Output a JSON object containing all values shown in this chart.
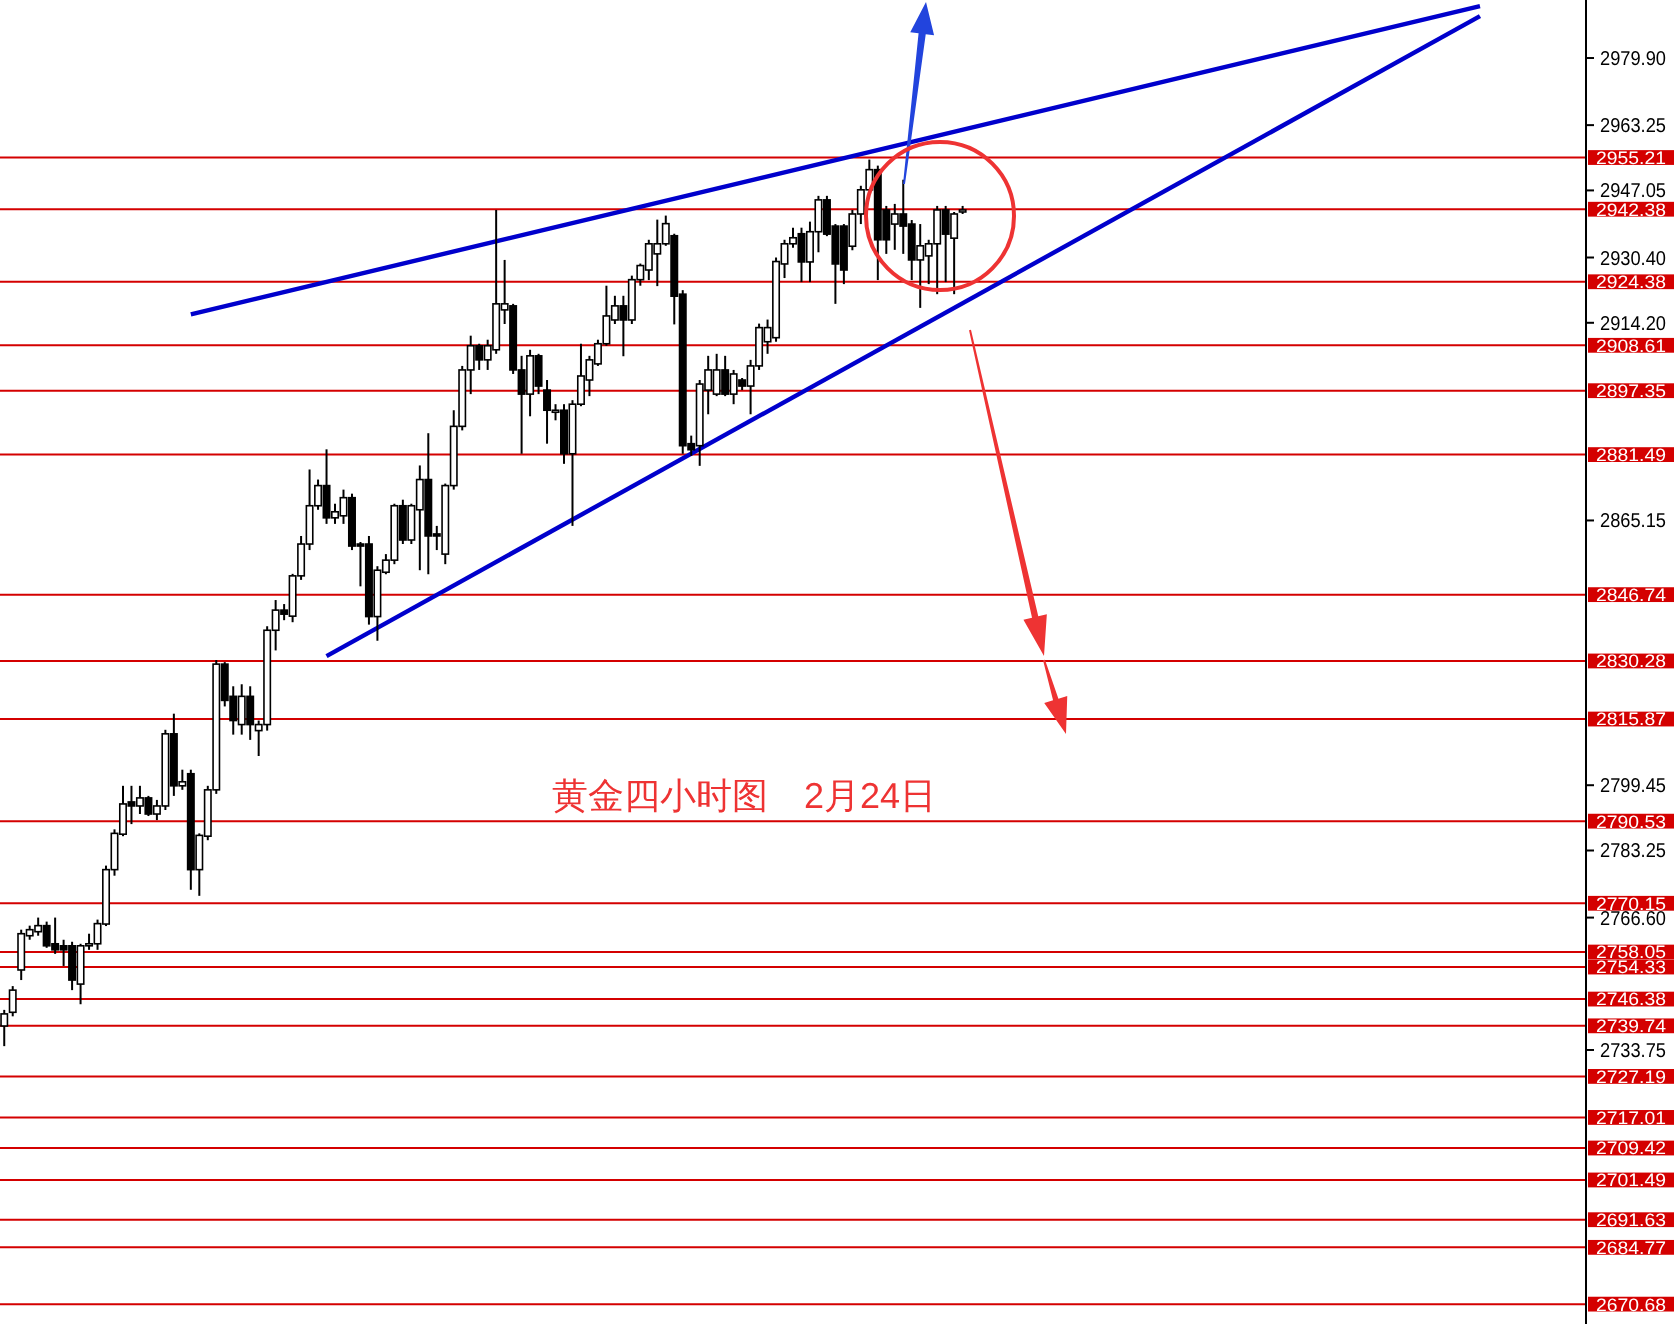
{
  "chart_data": {
    "type": "candlestick",
    "categories": [
      null,
      null,
      null,
      null,
      null,
      null,
      null,
      null,
      null,
      null,
      null,
      null,
      null,
      null,
      null,
      null,
      null,
      null,
      null,
      null,
      null,
      null,
      null,
      null,
      null,
      null,
      null,
      null,
      null,
      null,
      null,
      null,
      null,
      null,
      null,
      null,
      null,
      null,
      null,
      null,
      null,
      null,
      null,
      null,
      null,
      null,
      null,
      null,
      null,
      null,
      null,
      null,
      null,
      null,
      null,
      null,
      null,
      null,
      null,
      null,
      null,
      null,
      null,
      null,
      null,
      null,
      null,
      null,
      null,
      null,
      null,
      null,
      null,
      null,
      null,
      null,
      null,
      null,
      null,
      null,
      null,
      null,
      null,
      null,
      null,
      null,
      null,
      null,
      null,
      null,
      null,
      null,
      null,
      null,
      null,
      null,
      null,
      null,
      null,
      null,
      null,
      null,
      null,
      null,
      null,
      null,
      null,
      null,
      null,
      null,
      null,
      null,
      null,
      null,
      null,
      null,
      null,
      null,
      null,
      null,
      null,
      null,
      null,
      null,
      null,
      null,
      null,
      null,
      null,
      null,
      null,
      null,
      null,
      null,
      null,
      null,
      null,
      null,
      null,
      null,
      null,
      null,
      null,
      null,
      null,
      null,
      null,
      null,
      null,
      null,
      null,
      null,
      null,
      null,
      null,
      null,
      null,
      null,
      null,
      null,
      null,
      null,
      null,
      null,
      null,
      null,
      null,
      null,
      null,
      null,
      null,
      null,
      null,
      null,
      null,
      null,
      null,
      null,
      null,
      null,
      null,
      null,
      null,
      null,
      null,
      null,
      null
    ],
    "ohlc": [
      [
        2739.7,
        2743.7,
        2734.7,
        2742.7
      ],
      [
        2743.1,
        2749.6,
        2742.1,
        2748.6
      ],
      [
        2753.6,
        2763.6,
        2751.1,
        2762.6
      ],
      [
        2762.1,
        2764.6,
        2761.1,
        2763.6
      ],
      [
        2763.1,
        2766.6,
        2762.1,
        2764.6
      ],
      [
        2764.6,
        2765.6,
        2759.1,
        2759.6
      ],
      [
        2760.1,
        2766.6,
        2757.6,
        2758.6
      ],
      [
        2759.6,
        2761.1,
        2754.6,
        2758.6
      ],
      [
        2759.6,
        2760.6,
        2748.6,
        2751.1
      ],
      [
        2750.1,
        2760.1,
        2745.1,
        2759.6
      ],
      [
        2759.6,
        2762.6,
        2758.6,
        2760.1
      ],
      [
        2760.1,
        2766.1,
        2758.6,
        2765.1
      ],
      [
        2765.0,
        2779.5,
        2764.5,
        2778.5
      ],
      [
        2778.5,
        2788.5,
        2777.0,
        2787.5
      ],
      [
        2787.3,
        2799.3,
        2786.8,
        2794.8
      ],
      [
        2795.3,
        2799.3,
        2789.8,
        2794.3
      ],
      [
        2794.3,
        2799.3,
        2792.3,
        2796.3
      ],
      [
        2796.3,
        2796.8,
        2791.8,
        2792.3
      ],
      [
        2792.3,
        2795.8,
        2790.8,
        2794.3
      ],
      [
        2794.3,
        2813.2,
        2793.3,
        2812.2
      ],
      [
        2812.2,
        2817.2,
        2796.8,
        2799.3
      ],
      [
        2799.3,
        2803.3,
        2798.3,
        2800.3
      ],
      [
        2802.3,
        2803.3,
        2773.5,
        2778.5
      ],
      [
        2778.5,
        2787.5,
        2772.0,
        2787.0
      ],
      [
        2786.8,
        2799.3,
        2785.8,
        2798.3
      ],
      [
        2798.3,
        2830.5,
        2797.3,
        2829.5
      ],
      [
        2829.5,
        2830.0,
        2819.0,
        2820.5
      ],
      [
        2821.5,
        2824.0,
        2812.0,
        2815.5
      ],
      [
        2814.5,
        2824.5,
        2812.0,
        2821.5
      ],
      [
        2821.5,
        2824.0,
        2810.7,
        2814.5
      ],
      [
        2813.0,
        2815.5,
        2806.7,
        2814.5
      ],
      [
        2814.5,
        2838.9,
        2813.0,
        2837.9
      ],
      [
        2837.9,
        2845.4,
        2832.9,
        2842.9
      ],
      [
        2842.9,
        2844.4,
        2840.4,
        2841.9
      ],
      [
        2841.4,
        2851.9,
        2839.9,
        2851.4
      ],
      [
        2851.4,
        2861.3,
        2850.4,
        2859.3
      ],
      [
        2859.3,
        2877.8,
        2857.8,
        2868.8
      ],
      [
        2868.8,
        2875.3,
        2867.8,
        2873.8
      ],
      [
        2873.8,
        2882.8,
        2864.3,
        2865.8
      ],
      [
        2865.8,
        2869.3,
        2864.3,
        2867.3
      ],
      [
        2866.3,
        2872.8,
        2864.3,
        2870.8
      ],
      [
        2870.8,
        2871.8,
        2857.8,
        2858.8
      ],
      [
        2859.3,
        2859.8,
        2848.8,
        2858.8
      ],
      [
        2859.3,
        2861.3,
        2839.3,
        2841.3
      ],
      [
        2841.3,
        2853.8,
        2835.3,
        2852.8
      ],
      [
        2852.3,
        2856.8,
        2851.8,
        2855.3
      ],
      [
        2855.3,
        2869.3,
        2854.3,
        2868.8
      ],
      [
        2868.8,
        2870.3,
        2859.3,
        2860.3
      ],
      [
        2860.3,
        2869.3,
        2859.3,
        2868.8
      ],
      [
        2867.8,
        2878.8,
        2852.8,
        2875.3
      ],
      [
        2875.3,
        2886.8,
        2851.8,
        2861.3
      ],
      [
        2861.8,
        2863.8,
        2857.8,
        2861.3
      ],
      [
        2856.8,
        2874.3,
        2854.3,
        2873.8
      ],
      [
        2873.8,
        2892.5,
        2872.8,
        2888.5
      ],
      [
        2888.5,
        2903.5,
        2887.5,
        2902.5
      ],
      [
        2902.5,
        2911.0,
        2896.5,
        2908.5
      ],
      [
        2908.5,
        2909.0,
        2902.5,
        2905.0
      ],
      [
        2905.0,
        2910.0,
        2902.5,
        2908.5
      ],
      [
        2907.5,
        2942.2,
        2906.5,
        2918.9
      ],
      [
        2917.4,
        2929.8,
        2913.9,
        2918.9
      ],
      [
        2918.4,
        2918.9,
        2901.5,
        2902.5
      ],
      [
        2902.5,
        2906.0,
        2881.7,
        2896.5
      ],
      [
        2896.5,
        2907.5,
        2891.0,
        2906.0
      ],
      [
        2906.0,
        2906.5,
        2896.5,
        2898.5
      ],
      [
        2897.5,
        2900.0,
        2884.2,
        2892.5
      ],
      [
        2892.0,
        2894.0,
        2890.0,
        2892.5
      ],
      [
        2892.5,
        2894.0,
        2879.2,
        2881.7
      ],
      [
        2881.7,
        2895.0,
        2863.8,
        2894.0
      ],
      [
        2894.0,
        2909.0,
        2893.5,
        2901.0
      ],
      [
        2900.0,
        2906.0,
        2896.0,
        2905.0
      ],
      [
        2904.0,
        2910.0,
        2903.5,
        2909.0
      ],
      [
        2909.0,
        2923.4,
        2908.5,
        2915.9
      ],
      [
        2914.9,
        2920.9,
        2913.9,
        2918.4
      ],
      [
        2918.4,
        2920.9,
        2905.9,
        2914.9
      ],
      [
        2914.9,
        2925.9,
        2913.9,
        2924.9
      ],
      [
        2924.9,
        2928.9,
        2923.4,
        2928.4
      ],
      [
        2927.3,
        2934.8,
        2924.8,
        2933.8
      ],
      [
        2931.3,
        2939.8,
        2923.3,
        2933.8
      ],
      [
        2933.8,
        2940.8,
        2933.3,
        2938.8
      ],
      [
        2935.8,
        2936.3,
        2913.8,
        2920.8
      ],
      [
        2921.3,
        2922.3,
        2881.7,
        2883.7
      ],
      [
        2884.2,
        2886.2,
        2881.2,
        2882.7
      ],
      [
        2883.7,
        2900.0,
        2878.7,
        2899.0
      ],
      [
        2897.5,
        2906.0,
        2891.5,
        2902.5
      ],
      [
        2896.5,
        2906.5,
        2896.0,
        2902.5
      ],
      [
        2902.5,
        2906.0,
        2896.0,
        2896.5
      ],
      [
        2896.5,
        2902.5,
        2894.0,
        2901.5
      ],
      [
        2900.0,
        2900.5,
        2897.5,
        2898.5
      ],
      [
        2898.5,
        2905.0,
        2891.5,
        2903.5
      ],
      [
        2903.5,
        2914.0,
        2902.5,
        2913.0
      ],
      [
        2909.5,
        2915.0,
        2906.5,
        2913.0
      ],
      [
        2910.5,
        2930.4,
        2909.5,
        2929.4
      ],
      [
        2928.8,
        2934.8,
        2925.3,
        2933.8
      ],
      [
        2933.8,
        2937.8,
        2932.8,
        2935.3
      ],
      [
        2936.3,
        2937.8,
        2924.3,
        2929.3
      ],
      [
        2929.3,
        2939.3,
        2924.3,
        2936.8
      ],
      [
        2936.8,
        2945.7,
        2931.7,
        2944.7
      ],
      [
        2944.7,
        2945.7,
        2935.7,
        2936.2
      ],
      [
        2938.2,
        2938.7,
        2918.9,
        2928.8
      ],
      [
        2938.2,
        2938.7,
        2923.8,
        2927.3
      ],
      [
        2933.2,
        2942.2,
        2932.2,
        2941.2
      ],
      [
        2941.2,
        2948.2,
        2938.7,
        2947.2
      ],
      [
        2947.2,
        2954.7,
        2946.2,
        2952.2
      ],
      [
        2952.2,
        2953.2,
        2924.8,
        2934.8
      ],
      [
        2942.2,
        2943.2,
        2931.3,
        2934.8
      ],
      [
        2938.7,
        2943.7,
        2932.3,
        2941.2
      ],
      [
        2941.2,
        2949.7,
        2931.3,
        2938.2
      ],
      [
        2938.7,
        2939.7,
        2924.8,
        2929.8
      ],
      [
        2929.8,
        2938.7,
        2917.9,
        2933.3
      ],
      [
        2930.8,
        2934.8,
        2923.8,
        2933.8
      ],
      [
        2933.8,
        2943.2,
        2921.3,
        2942.2
      ],
      [
        2942.2,
        2943.2,
        2924.3,
        2936.2
      ],
      [
        2935.2,
        2941.7,
        2921.3,
        2941.2
      ],
      [
        2941.7,
        2943.2,
        2941.2,
        2942.2
      ],
      null,
      null,
      null,
      null,
      null,
      null,
      null,
      null,
      null,
      null,
      null,
      null,
      null,
      null,
      null,
      null,
      null,
      null,
      null,
      null,
      null,
      null,
      null,
      null,
      null,
      null,
      null,
      null,
      null,
      null,
      null,
      null,
      null,
      null,
      null,
      null,
      null,
      null,
      null,
      null,
      null,
      null,
      null,
      null,
      null,
      null,
      null,
      null,
      null,
      null,
      null,
      null,
      null,
      null,
      null,
      null,
      null,
      null,
      null,
      null,
      null,
      null,
      null,
      null,
      null,
      null,
      null,
      null,
      null,
      null,
      null,
      null,
      null
    ],
    "series": [
      {
        "type": "line",
        "color": "#0000cc",
        "values": [
          null,
          null,
          null,
          null,
          null,
          null,
          null,
          null,
          null,
          null,
          null,
          null,
          null,
          null,
          null,
          null,
          null,
          null,
          null,
          null,
          null,
          null,
          2916.3,
          null,
          null,
          null,
          null,
          null,
          null,
          null,
          null,
          null,
          null,
          null,
          null,
          null,
          null,
          null,
          null,
          null,
          null,
          null,
          null,
          null,
          null,
          null,
          null,
          null,
          null,
          null,
          null,
          null,
          null,
          null,
          null,
          null,
          null,
          null,
          null,
          null,
          null,
          null,
          null,
          null,
          null,
          null,
          null,
          null,
          null,
          null,
          null,
          null,
          null,
          null,
          null,
          null,
          null,
          null,
          null,
          null,
          null,
          null,
          null,
          null,
          null,
          null,
          null,
          null,
          null,
          null,
          null,
          null,
          null,
          null,
          null,
          null,
          null,
          null,
          null,
          null,
          null,
          null,
          null,
          null,
          null,
          null,
          null,
          null,
          null,
          null,
          null,
          null,
          null,
          null,
          null,
          null,
          null,
          null,
          null,
          null,
          null,
          null,
          null,
          null,
          null,
          null,
          null,
          null,
          null,
          null,
          null,
          null,
          null,
          null,
          null,
          null,
          null,
          null,
          null,
          null,
          null,
          null,
          null,
          null,
          null,
          null,
          null,
          null,
          null,
          null,
          null,
          null,
          null,
          null,
          null,
          null,
          null,
          null,
          null,
          null,
          null,
          null,
          null,
          null,
          null,
          null,
          null,
          null,
          null,
          null,
          null,
          null,
          null,
          null,
          2992.8,
          null,
          null,
          null,
          null,
          null,
          null,
          null,
          null,
          null,
          null,
          null,
          null
        ]
      },
      {
        "type": "line",
        "color": "#0000cc",
        "values": [
          null,
          null,
          null,
          null,
          null,
          null,
          null,
          null,
          null,
          null,
          null,
          null,
          null,
          null,
          null,
          null,
          null,
          null,
          null,
          null,
          null,
          null,
          null,
          null,
          null,
          null,
          null,
          null,
          null,
          null,
          null,
          null,
          null,
          null,
          null,
          null,
          null,
          null,
          2831.5,
          null,
          null,
          null,
          null,
          null,
          null,
          null,
          null,
          null,
          null,
          null,
          null,
          null,
          null,
          null,
          null,
          null,
          null,
          null,
          null,
          null,
          null,
          null,
          null,
          null,
          null,
          null,
          null,
          null,
          null,
          null,
          null,
          null,
          null,
          null,
          null,
          null,
          null,
          null,
          null,
          null,
          null,
          null,
          null,
          null,
          null,
          null,
          null,
          null,
          null,
          null,
          null,
          null,
          null,
          null,
          null,
          null,
          null,
          null,
          null,
          null,
          null,
          null,
          null,
          null,
          null,
          null,
          null,
          null,
          null,
          null,
          null,
          null,
          null,
          null,
          null,
          null,
          null,
          null,
          null,
          null,
          null,
          null,
          null,
          null,
          null,
          null,
          null,
          null,
          null,
          null,
          null,
          null,
          null,
          null,
          null,
          null,
          null,
          null,
          null,
          null,
          null,
          null,
          null,
          null,
          null,
          null,
          null,
          null,
          null,
          null,
          null,
          null,
          null,
          null,
          null,
          null,
          null,
          null,
          null,
          null,
          null,
          null,
          null,
          null,
          null,
          null,
          null,
          null,
          null,
          null,
          null,
          null,
          null,
          null,
          2990.3,
          null,
          null,
          null,
          null,
          null,
          null,
          null,
          null,
          null,
          null,
          null,
          null
        ]
      }
    ],
    "ylim": [
      2665.75,
      2994.3
    ],
    "yticks": [
      {
        "value": 2979.9,
        "label": "2979.90"
      },
      2963.25,
      2947.05,
      {
        "value": 2930.4,
        "label": "2930.40"
      },
      {
        "value": 2914.2,
        "label": "2914.20"
      },
      2865.15,
      2799.45,
      2783.25,
      {
        "value": 2766.6,
        "label": "2766.60"
      },
      2733.75
    ],
    "tick_labels": "y",
    "ref_lines": [
      {
        "axis": "y",
        "value": 2955.21,
        "label": "2955.21",
        "color": "#d40000"
      },
      {
        "axis": "y",
        "value": 2942.38,
        "label": "2942.38",
        "color": "#d40000"
      },
      {
        "axis": "y",
        "value": 2924.38,
        "label": "2924.38",
        "color": "#d40000"
      },
      {
        "axis": "y",
        "value": 2908.61,
        "label": "2908.61",
        "color": "#d40000"
      },
      {
        "axis": "y",
        "value": 2897.35,
        "label": "2897.35",
        "color": "#d40000"
      },
      {
        "axis": "y",
        "value": 2881.49,
        "label": "2881.49",
        "color": "#d40000"
      },
      {
        "axis": "y",
        "value": 2846.74,
        "label": "2846.74",
        "color": "#d40000"
      },
      {
        "axis": "y",
        "value": 2830.28,
        "label": "2830.28",
        "color": "#d40000"
      },
      {
        "axis": "y",
        "value": 2815.87,
        "label": "2815.87",
        "color": "#d40000"
      },
      {
        "axis": "y",
        "value": 2790.53,
        "label": "2790.53",
        "color": "#d40000"
      },
      {
        "axis": "y",
        "value": 2770.15,
        "label": "2770.15",
        "color": "#d40000"
      },
      {
        "axis": "y",
        "value": 2758.05,
        "label": "2758.05",
        "color": "#d40000"
      },
      {
        "axis": "y",
        "value": 2754.33,
        "label": "2754.33",
        "color": "#d40000"
      },
      {
        "axis": "y",
        "value": 2746.38,
        "label": "2746.38",
        "color": "#d40000"
      },
      {
        "axis": "y",
        "value": 2739.74,
        "label": "2739.74",
        "color": "#d40000"
      },
      {
        "axis": "y",
        "value": 2727.19,
        "label": "2727.19",
        "color": "#d40000"
      },
      {
        "axis": "y",
        "value": 2717.01,
        "label": "2717.01",
        "color": "#d40000"
      },
      {
        "axis": "y",
        "value": 2709.42,
        "label": "2709.42",
        "color": "#d40000"
      },
      {
        "axis": "y",
        "value": 2701.49,
        "label": "2701.49",
        "color": "#d40000"
      },
      {
        "axis": "y",
        "value": 2691.63,
        "label": "2691.63",
        "color": "#d40000"
      },
      {
        "axis": "y",
        "value": 2684.77,
        "label": "2684.77",
        "color": "#d40000"
      },
      {
        "axis": "y",
        "value": 2670.68,
        "label": "2670.68",
        "color": "#d40000"
      }
    ],
    "annotations": [
      "黄金四小时图　2月24日"
    ]
  }
}
